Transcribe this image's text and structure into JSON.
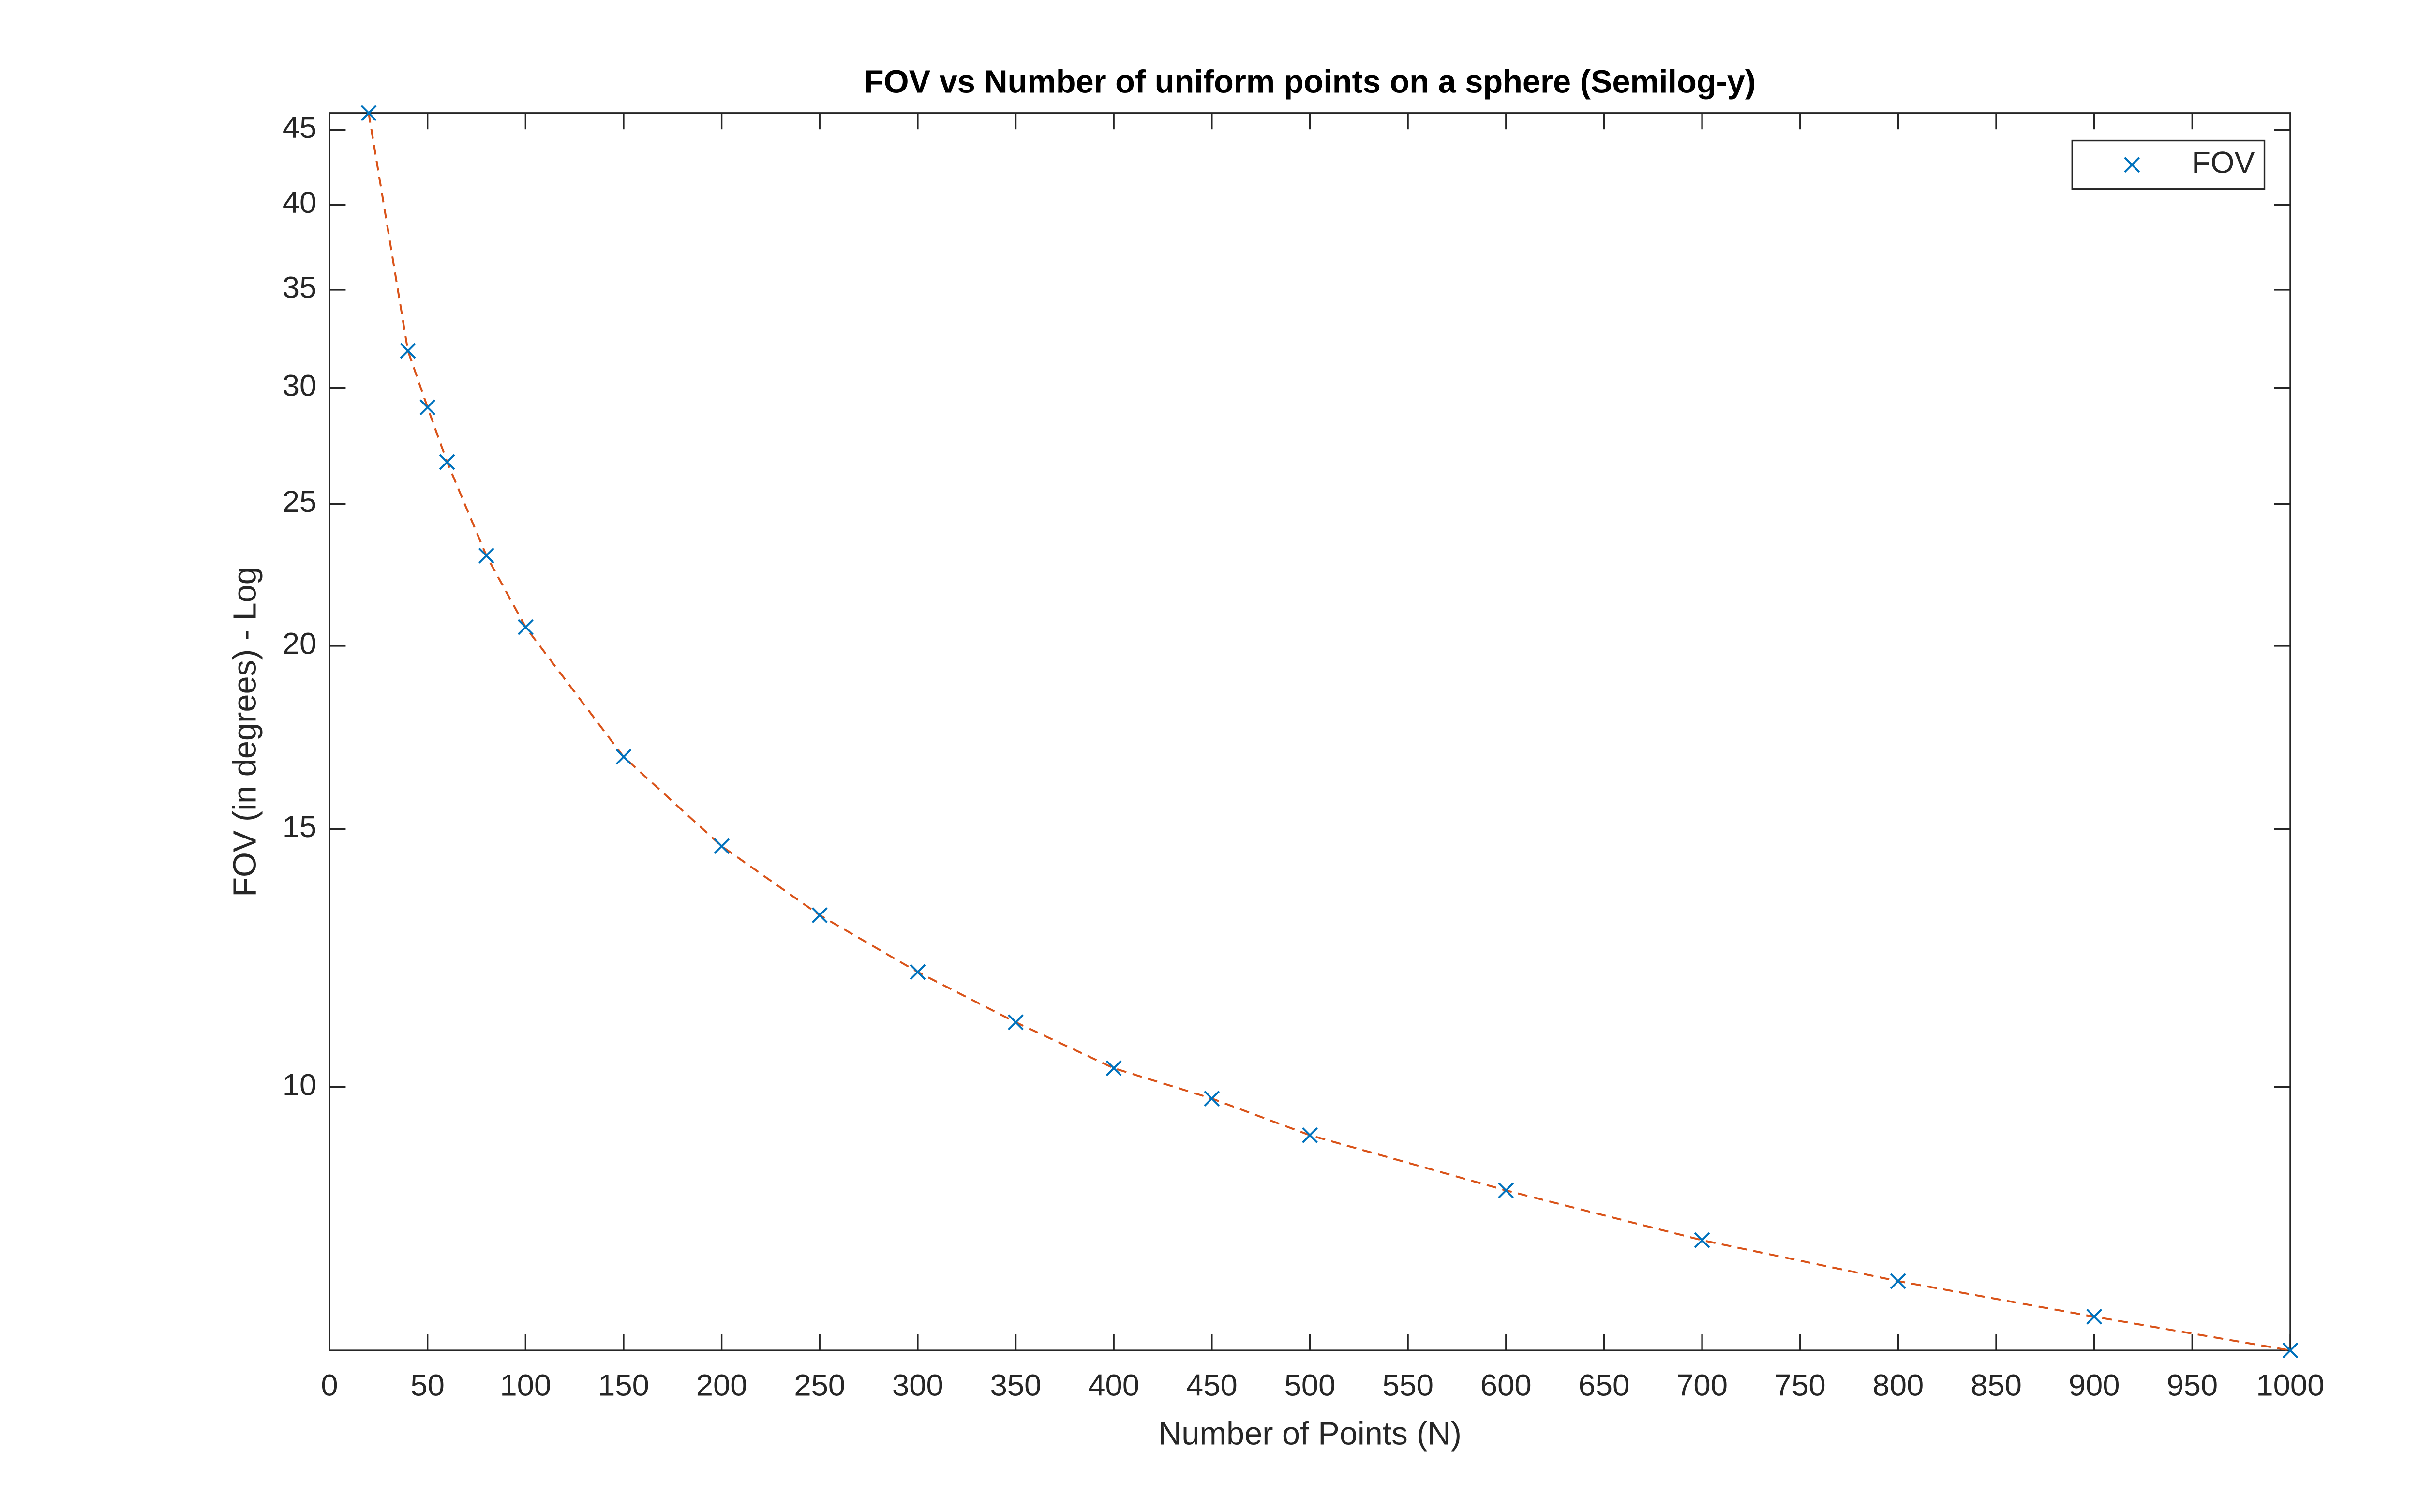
{
  "chart_data": {
    "type": "line",
    "title": "FOV vs Number of uniform points on a sphere (Semilog-y)",
    "x_label": "Number of Points (N)",
    "y_label": "FOV (in degrees) - Log",
    "x": [
      20,
      40,
      50,
      60,
      80,
      100,
      150,
      200,
      250,
      300,
      350,
      400,
      450,
      500,
      600,
      700,
      800,
      900,
      1000
    ],
    "series": [
      {
        "name": "FOV",
        "color": "#0072BD",
        "line_color": "#D95319",
        "values": [
          46.2,
          31.8,
          29.1,
          26.7,
          23.05,
          20.6,
          16.8,
          14.6,
          13.1,
          11.98,
          11.07,
          10.3,
          9.82,
          9.27,
          8.5,
          7.86,
          7.37,
          6.97,
          6.61
        ]
      }
    ],
    "xlim": [
      0,
      1000
    ],
    "xticks": [
      0,
      50,
      100,
      150,
      200,
      250,
      300,
      350,
      400,
      450,
      500,
      550,
      600,
      650,
      700,
      750,
      800,
      850,
      900,
      950,
      1000
    ],
    "ylim": [
      6.61,
      46.2
    ],
    "yticks": [
      10,
      15,
      20,
      25,
      30,
      35,
      40,
      45
    ],
    "y_scale": "log",
    "grid": false,
    "legend_position": "top-right"
  }
}
